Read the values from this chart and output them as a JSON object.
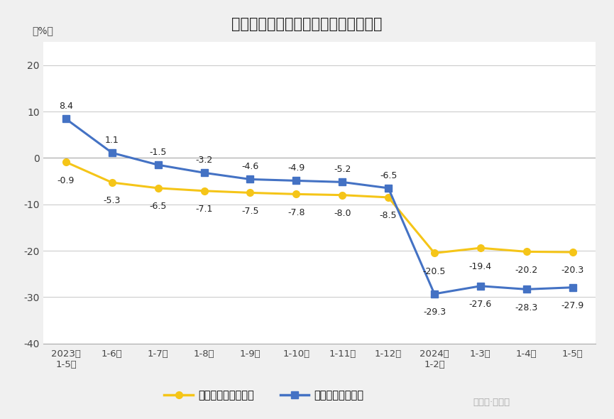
{
  "title": "全国新建商品房销售面积及销售额增速",
  "ylabel": "（%）",
  "categories": [
    "2023年\n1-5月",
    "1-6月",
    "1-7月",
    "1-8月",
    "1-9月",
    "1-10月",
    "1-11月",
    "1-12月",
    "2024年\n1-2月",
    "1-3月",
    "1-4月",
    "1-5月"
  ],
  "area_values": [
    -0.9,
    -5.3,
    -6.5,
    -7.1,
    -7.5,
    -7.8,
    -8.0,
    -8.5,
    -20.5,
    -19.4,
    -20.2,
    -20.3
  ],
  "sales_values": [
    8.4,
    1.1,
    -1.5,
    -3.2,
    -4.6,
    -4.9,
    -5.2,
    -6.5,
    -29.3,
    -27.6,
    -28.3,
    -27.9
  ],
  "area_color": "#F5C518",
  "sales_color": "#4472C4",
  "area_label": "新建商品房销售面积",
  "sales_label": "新建商品房销售额",
  "ylim": [
    -40,
    25
  ],
  "yticks": [
    -40,
    -30,
    -20,
    -10,
    0,
    10,
    20
  ],
  "background_color": "#f0f0f0",
  "plot_background": "#ffffff",
  "grid_color": "#cccccc",
  "watermark": "公众号·崔东树"
}
